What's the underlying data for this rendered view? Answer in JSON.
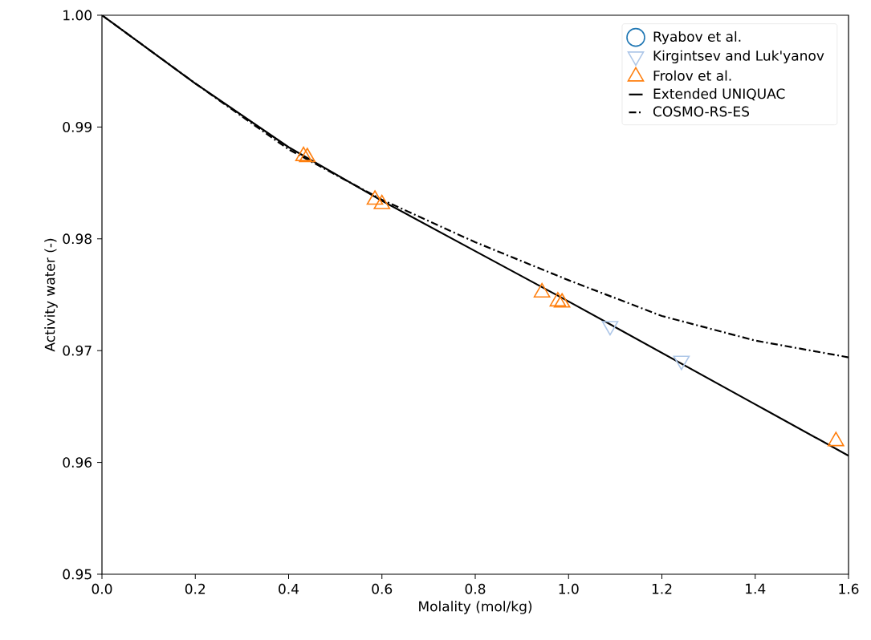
{
  "chart_data": {
    "type": "scatter",
    "xlabel": "Molality (mol/kg)",
    "ylabel": "Activity water (-)",
    "xlim": [
      0,
      1.6
    ],
    "ylim": [
      0.95,
      1.0
    ],
    "xticks": [
      {
        "value": 0,
        "label": "0.0"
      },
      0.2,
      0.4,
      0.6,
      0.8,
      {
        "value": 1,
        "label": "1.0"
      },
      1.2,
      1.4,
      1.6
    ],
    "yticks": [
      0.95,
      0.96,
      0.97,
      0.98,
      0.99,
      {
        "value": 1,
        "label": "1.00"
      }
    ],
    "grid": false,
    "legend": "top right",
    "series": [
      {
        "name": "Ryabov et al.",
        "marker": "circle",
        "color": "#1f77b4"
      },
      {
        "name": "Kirgintsev and Luk'yanov",
        "marker": "triangle_down",
        "color": "#aec7e8",
        "x": [
          1.089,
          1.242
        ],
        "values": [
          0.9722,
          0.9691
        ]
      },
      {
        "name": "Frolov et al.",
        "marker": "triangle",
        "color": "#ff7f0e",
        "x": [
          0.432,
          0.44,
          0.585,
          0.6,
          0.943,
          0.977,
          0.986,
          1.573
        ],
        "values": [
          0.9874,
          0.9873,
          0.9835,
          0.9831,
          0.9752,
          0.9744,
          0.9743,
          0.9619
        ]
      },
      {
        "name": "Extended UNIQUAC",
        "type": "line",
        "marker": "none",
        "line_style": "solid",
        "color": "#000000",
        "x": [
          0,
          0.2,
          0.4,
          0.6,
          0.8,
          1.0,
          1.2,
          1.4,
          1.6
        ],
        "values": [
          1.0,
          0.9939,
          0.9882,
          0.9834,
          0.9789,
          0.9744,
          0.9698,
          0.9652,
          0.9606
        ]
      },
      {
        "name": "COSMO-RS-ES",
        "type": "line",
        "marker": "none",
        "line_style": "dashdot",
        "color": "#000000",
        "x": [
          0,
          0.2,
          0.4,
          0.6,
          0.8,
          1.0,
          1.2,
          1.4,
          1.6
        ],
        "values": [
          1.0,
          0.9939,
          0.988,
          0.9835,
          0.9797,
          0.9763,
          0.9731,
          0.9709,
          0.9694
        ]
      }
    ]
  }
}
